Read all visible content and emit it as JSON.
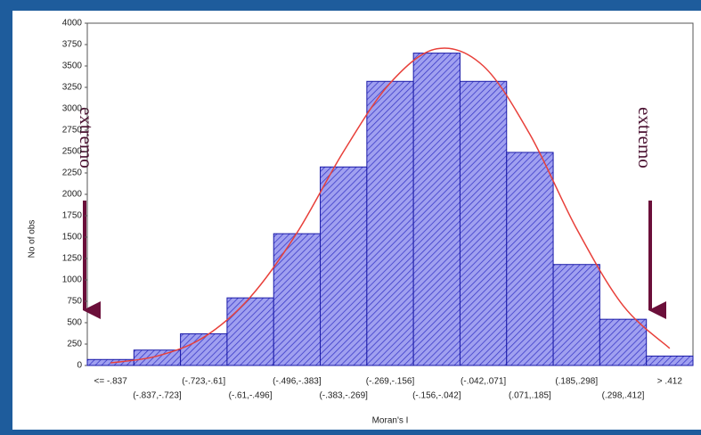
{
  "chart_data": {
    "type": "histogram",
    "categories": [
      "<= -.837",
      "(-.837,-.723]",
      "(-.723,-.61]",
      "(-.61,-.496]",
      "(-.496,-.383]",
      "(-.383,-.269]",
      "(-.269,-.156]",
      "(-.156,-.042]",
      "(-.042,.071]",
      "(.071,.185]",
      "(.185,.298]",
      "(.298,.412]",
      "> .412"
    ],
    "values": [
      70,
      180,
      370,
      790,
      1540,
      2320,
      3320,
      3650,
      3320,
      2490,
      1180,
      540,
      110
    ],
    "color": "#a0a0f0",
    "fit_values": [
      30,
      110,
      330,
      800,
      1550,
      2500,
      3300,
      3700,
      3500,
      2700,
      1600,
      700,
      200
    ],
    "fit_color": "#e8403a",
    "ylim": [
      0,
      4000
    ],
    "yticks": [
      0,
      250,
      500,
      750,
      1000,
      1250,
      1500,
      1750,
      2000,
      2250,
      2500,
      2750,
      3000,
      3250,
      3500,
      3750,
      4000
    ],
    "grid": false,
    "y_label": "No of obs",
    "x_label": "Moran's I",
    "annotations": [
      {
        "text": "extremo"
      },
      {
        "text": "extremo"
      }
    ]
  }
}
